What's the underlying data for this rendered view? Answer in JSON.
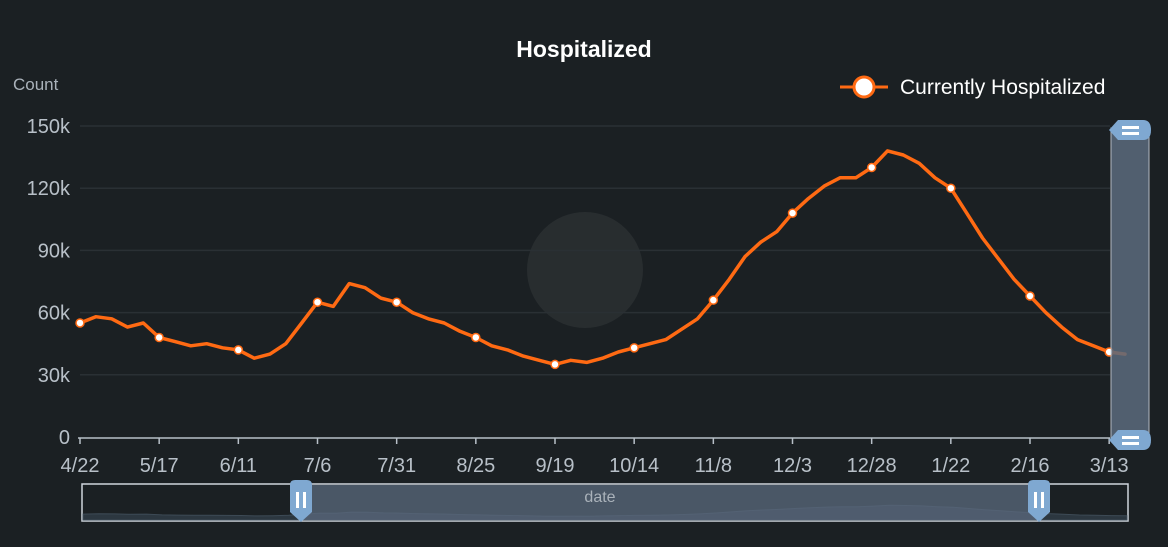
{
  "colors": {
    "background": "#1b2023",
    "series": "#ff6a13",
    "axis": "#b8c0c8",
    "grid": "#2a3034",
    "zoom_handle": "#7fa8d1",
    "zoom_fill": "#5b6a7d",
    "text_main": "#ffffff",
    "text_muted": "#aab2ba"
  },
  "chart_data": {
    "type": "line",
    "title": "Hospitalized",
    "ylabel": "Count",
    "ylim": [
      0,
      150000
    ],
    "y_ticks": [
      {
        "value": 0,
        "label": "0"
      },
      {
        "value": 30000,
        "label": "30k"
      },
      {
        "value": 60000,
        "label": "60k"
      },
      {
        "value": 90000,
        "label": "90k"
      },
      {
        "value": 120000,
        "label": "120k"
      },
      {
        "value": 150000,
        "label": "150k"
      }
    ],
    "x_ticks": [
      "4/22",
      "5/17",
      "6/11",
      "7/6",
      "7/31",
      "8/25",
      "9/19",
      "10/14",
      "11/8",
      "12/3",
      "12/28",
      "1/22",
      "2/16",
      "3/13"
    ],
    "legend_position": "top-right",
    "grid": true,
    "series": [
      {
        "name": "Currently Hospitalized",
        "x": [
          "4/22",
          "4/27",
          "5/2",
          "5/7",
          "5/12",
          "5/17",
          "5/22",
          "5/27",
          "6/1",
          "6/6",
          "6/11",
          "6/16",
          "6/21",
          "6/26",
          "7/1",
          "7/6",
          "7/11",
          "7/16",
          "7/21",
          "7/26",
          "7/31",
          "8/5",
          "8/10",
          "8/15",
          "8/20",
          "8/25",
          "8/30",
          "9/4",
          "9/9",
          "9/14",
          "9/19",
          "9/24",
          "9/29",
          "10/4",
          "10/9",
          "10/14",
          "10/19",
          "10/24",
          "10/29",
          "11/3",
          "11/8",
          "11/13",
          "11/18",
          "11/23",
          "11/28",
          "12/3",
          "12/8",
          "12/13",
          "12/18",
          "12/23",
          "12/28",
          "1/2",
          "1/7",
          "1/12",
          "1/17",
          "1/22",
          "1/27",
          "2/1",
          "2/6",
          "2/11",
          "2/16",
          "2/21",
          "2/26",
          "3/3",
          "3/8",
          "3/13",
          "3/16"
        ],
        "values": [
          55000,
          58000,
          57000,
          53000,
          55000,
          48000,
          46000,
          44000,
          45000,
          43000,
          42000,
          38000,
          40000,
          45000,
          55000,
          65000,
          63000,
          74000,
          72000,
          67000,
          65000,
          60000,
          57000,
          55000,
          51000,
          48000,
          44000,
          42000,
          39000,
          37000,
          35000,
          37000,
          36000,
          38000,
          41000,
          43000,
          45000,
          47000,
          52000,
          57000,
          66000,
          76000,
          87000,
          94000,
          99000,
          108000,
          115000,
          121000,
          125000,
          125000,
          130000,
          138000,
          136000,
          132000,
          125000,
          120000,
          108000,
          96000,
          86000,
          76000,
          68000,
          60000,
          53000,
          47000,
          44000,
          41000,
          40000
        ]
      }
    ],
    "marked_points": [
      "4/22",
      "5/17",
      "6/11",
      "7/6",
      "7/31",
      "8/25",
      "9/19",
      "10/14",
      "11/8",
      "12/3",
      "12/28",
      "1/22",
      "2/16",
      "3/13"
    ],
    "zoom_slider": {
      "label": "date"
    }
  }
}
